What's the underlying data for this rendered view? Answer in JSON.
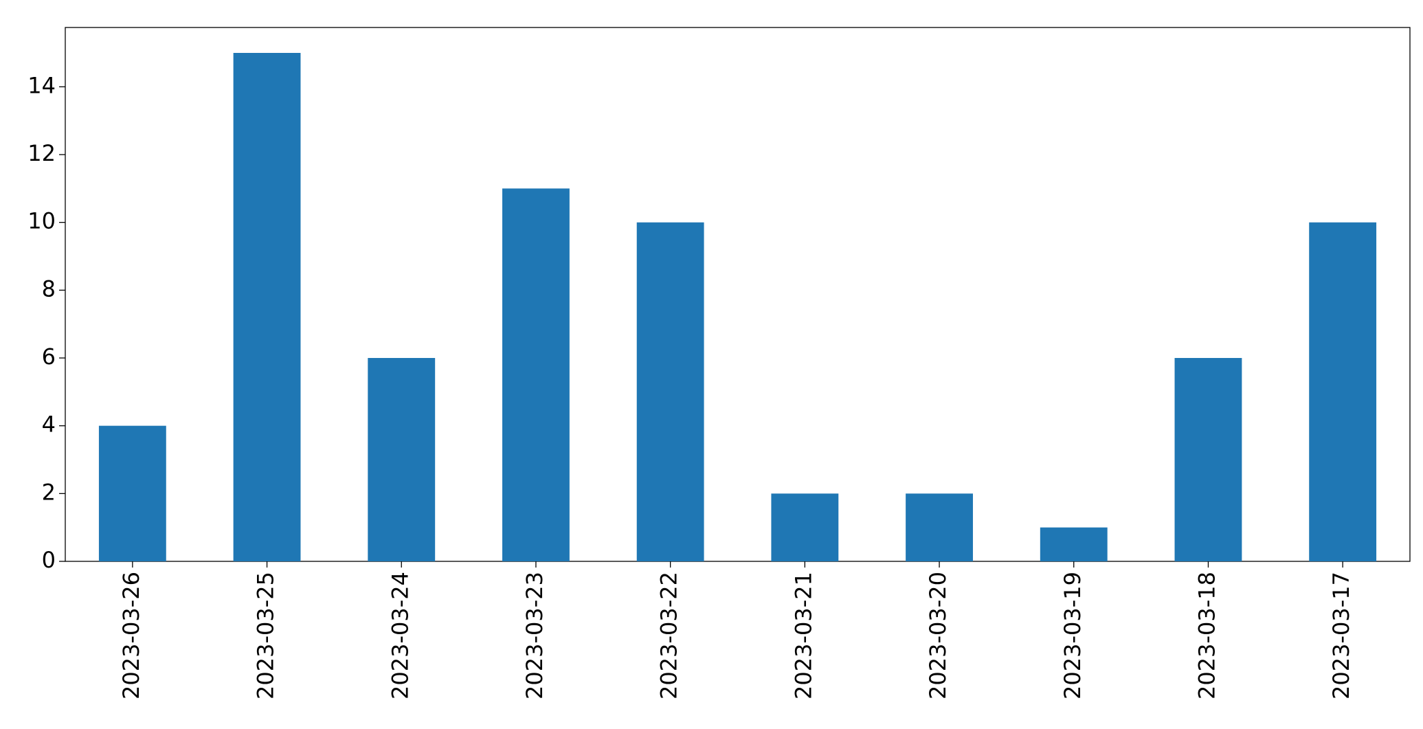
{
  "chart_data": {
    "type": "bar",
    "categories": [
      "2023-03-26",
      "2023-03-25",
      "2023-03-24",
      "2023-03-23",
      "2023-03-22",
      "2023-03-21",
      "2023-03-20",
      "2023-03-19",
      "2023-03-18",
      "2023-03-17"
    ],
    "values": [
      4,
      15,
      6,
      11,
      10,
      2,
      2,
      1,
      6,
      10
    ],
    "color": "#1f77b4",
    "ylim": [
      0,
      15.75
    ],
    "yticks": [
      0,
      2,
      4,
      6,
      8,
      10,
      12,
      14
    ],
    "grid": false
  }
}
